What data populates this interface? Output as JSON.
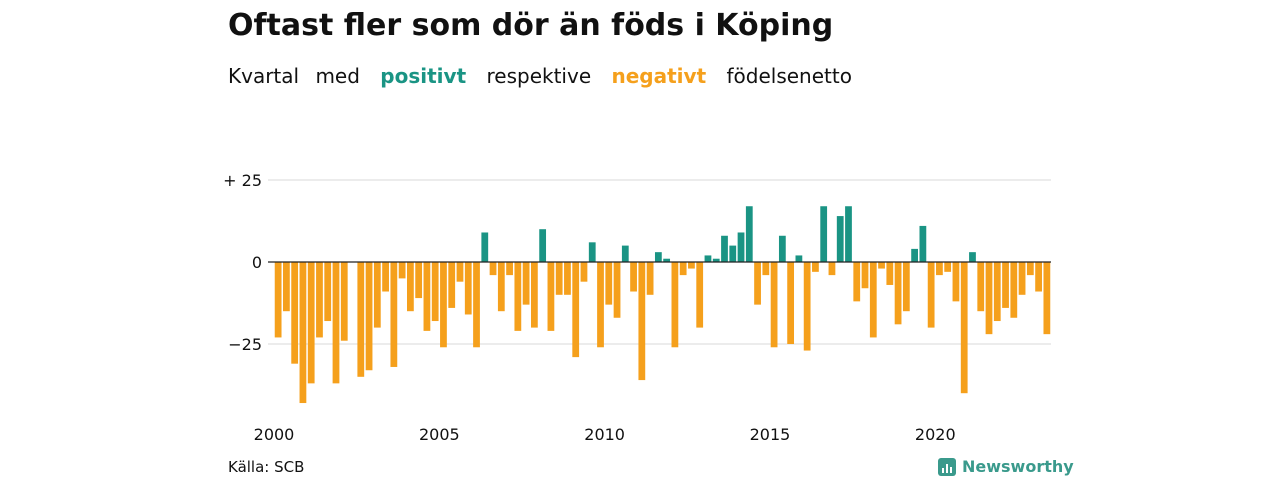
{
  "title": "Oftast fler som dör än föds i Köping",
  "subtitle": {
    "w1": "Kvartal",
    "w2": "med",
    "positive": "positivt",
    "w3": "respektive",
    "negative": "negativt",
    "w4": "födelsenetto"
  },
  "colors": {
    "positive": "#1a9484",
    "negative": "#f5a01c",
    "grid": "#d9d9d9",
    "zero": "#222222"
  },
  "source": "Källa: SCB",
  "brand": "Newsworthy",
  "chart_data": {
    "type": "bar",
    "y_ticks": [
      {
        "value": 25,
        "label": "+ 25"
      },
      {
        "value": 0,
        "label": "0"
      },
      {
        "value": -25,
        "label": "−25"
      }
    ],
    "x_ticks": [
      "2000",
      "2005",
      "2010",
      "2015",
      "2020"
    ],
    "ylim": [
      -45,
      35
    ],
    "grid": true,
    "x": [
      "2000Q1",
      "2000Q2",
      "2000Q3",
      "2000Q4",
      "2001Q1",
      "2001Q2",
      "2001Q3",
      "2001Q4",
      "2002Q1",
      "2002Q2",
      "2002Q3",
      "2002Q4",
      "2003Q1",
      "2003Q2",
      "2003Q3",
      "2003Q4",
      "2004Q1",
      "2004Q2",
      "2004Q3",
      "2004Q4",
      "2005Q1",
      "2005Q2",
      "2005Q3",
      "2005Q4",
      "2006Q1",
      "2006Q2",
      "2006Q3",
      "2006Q4",
      "2007Q1",
      "2007Q2",
      "2007Q3",
      "2007Q4",
      "2008Q1",
      "2008Q2",
      "2008Q3",
      "2008Q4",
      "2009Q1",
      "2009Q2",
      "2009Q3",
      "2009Q4",
      "2010Q1",
      "2010Q2",
      "2010Q3",
      "2010Q4",
      "2011Q1",
      "2011Q2",
      "2011Q3",
      "2011Q4",
      "2012Q1",
      "2012Q2",
      "2012Q3",
      "2012Q4",
      "2013Q1",
      "2013Q2",
      "2013Q3",
      "2013Q4",
      "2014Q1",
      "2014Q2",
      "2014Q3",
      "2014Q4",
      "2015Q1",
      "2015Q2",
      "2015Q3",
      "2015Q4",
      "2016Q1",
      "2016Q2",
      "2016Q3",
      "2016Q4",
      "2017Q1",
      "2017Q2",
      "2017Q3",
      "2017Q4",
      "2018Q1",
      "2018Q2",
      "2018Q3",
      "2018Q4",
      "2019Q1",
      "2019Q2",
      "2019Q3",
      "2019Q4",
      "2020Q1",
      "2020Q2",
      "2020Q3",
      "2020Q4",
      "2021Q1",
      "2021Q2",
      "2021Q3",
      "2021Q4",
      "2022Q1",
      "2022Q2",
      "2022Q3",
      "2022Q4",
      "2023Q1",
      "2023Q2"
    ],
    "values": [
      -23,
      -15,
      -31,
      -43,
      -37,
      -23,
      -18,
      -37,
      -24,
      0,
      -35,
      -33,
      -20,
      -9,
      -32,
      -5,
      -15,
      -11,
      -21,
      -18,
      -26,
      -14,
      -6,
      -16,
      -26,
      9,
      -4,
      -15,
      -4,
      -21,
      -13,
      -20,
      10,
      -21,
      -10,
      -10,
      -29,
      -6,
      6,
      -26,
      -13,
      -17,
      5,
      -9,
      -36,
      -10,
      3,
      1,
      -26,
      -4,
      -2,
      -20,
      2,
      1,
      8,
      5,
      9,
      17,
      -13,
      -4,
      -26,
      8,
      -25,
      2,
      -27,
      -3,
      17,
      -4,
      14,
      17,
      -12,
      -8,
      -23,
      -2,
      -7,
      -19,
      -15,
      4,
      11,
      -20,
      -4,
      -3,
      -12,
      -40,
      3,
      -15,
      -22,
      -18,
      -14,
      -17,
      -10,
      -4,
      -9,
      -22
    ]
  }
}
